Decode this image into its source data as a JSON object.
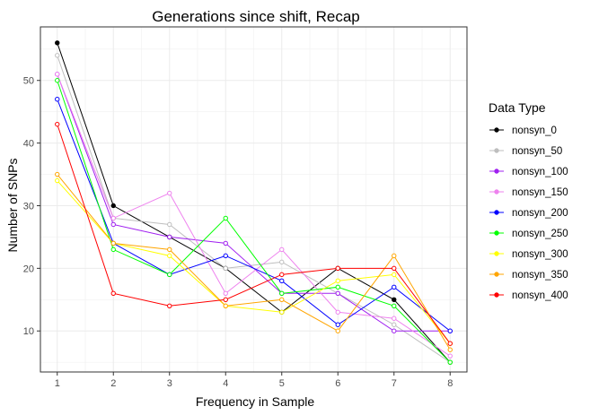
{
  "chart_data": {
    "type": "line",
    "title": "Generations since shift, Recap",
    "xlabel": "Frequency in Sample",
    "ylabel": "Number of SNPs",
    "x": [
      1,
      2,
      3,
      4,
      5,
      6,
      7,
      8
    ],
    "x_ticks": [
      "1",
      "2",
      "3",
      "4",
      "5",
      "6",
      "7",
      "8"
    ],
    "y_ticks": [
      "10",
      "20",
      "30",
      "40",
      "50"
    ],
    "xlim": [
      0.7,
      8.3
    ],
    "ylim": [
      3.45,
      58.55
    ],
    "grid": true,
    "legend": {
      "title": "Data Type",
      "placement": "right"
    },
    "series": [
      {
        "name": "nonsyn_0",
        "color": "#000000",
        "filled": true,
        "values": [
          56,
          30,
          25,
          20,
          13,
          20,
          15,
          5
        ]
      },
      {
        "name": "nonsyn_50",
        "color": "#bebebe",
        "filled": false,
        "values": [
          54,
          28,
          27,
          20,
          21,
          16,
          11,
          5
        ]
      },
      {
        "name": "nonsyn_100",
        "color": "#a020f0",
        "filled": false,
        "values": [
          51,
          27,
          25,
          24,
          16,
          16,
          10,
          10
        ]
      },
      {
        "name": "nonsyn_150",
        "color": "#ee82ee",
        "filled": false,
        "values": [
          51,
          28,
          32,
          16,
          23,
          13,
          12,
          6
        ]
      },
      {
        "name": "nonsyn_200",
        "color": "#0000ff",
        "filled": false,
        "values": [
          47,
          24,
          19,
          22,
          18,
          11,
          17,
          10
        ]
      },
      {
        "name": "nonsyn_250",
        "color": "#00ff00",
        "filled": false,
        "values": [
          50,
          23,
          19,
          28,
          16,
          17,
          14,
          5
        ]
      },
      {
        "name": "nonsyn_300",
        "color": "#ffff00",
        "filled": false,
        "values": [
          34,
          24,
          22,
          14,
          13,
          18,
          19,
          8
        ]
      },
      {
        "name": "nonsyn_350",
        "color": "#ffa500",
        "filled": false,
        "values": [
          35,
          24,
          23,
          14,
          15,
          10,
          22,
          7
        ]
      },
      {
        "name": "nonsyn_400",
        "color": "#ff0000",
        "filled": false,
        "values": [
          43,
          16,
          14,
          15,
          19,
          20,
          20,
          8
        ]
      }
    ]
  }
}
